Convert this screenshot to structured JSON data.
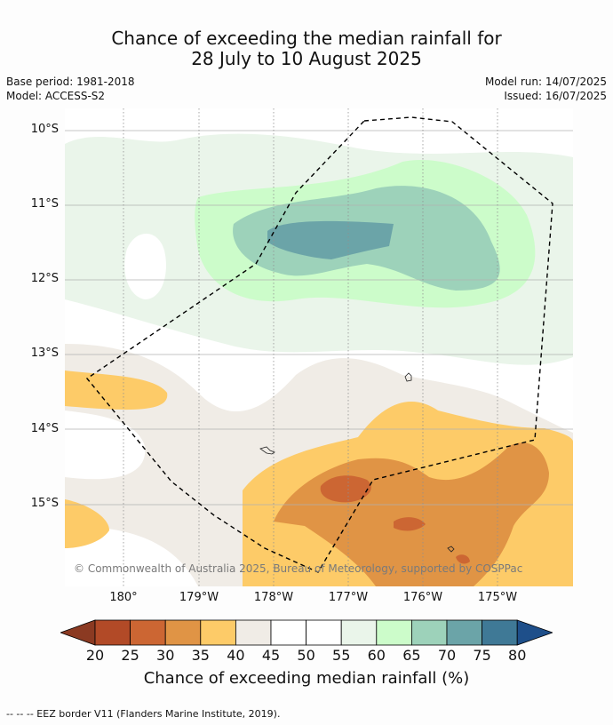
{
  "title_line1": "Chance of exceeding the median rainfall for",
  "title_line2": "28 July to 10 August 2025",
  "base_period": "Base period: 1981-2018",
  "model": "Model: ACCESS-S2",
  "model_run": "Model run: 14/07/2025",
  "issued": "Issued: 16/07/2025",
  "lat_labels": [
    "10°S",
    "11°S",
    "12°S",
    "13°S",
    "14°S",
    "15°S"
  ],
  "lon_labels": [
    "180°",
    "179°W",
    "178°W",
    "177°W",
    "176°W",
    "175°W"
  ],
  "copyright": "© Commonwealth of Australia 2025, Bureau of Meteorology, supported by COSPPac",
  "colorbar": {
    "ticks": [
      "20",
      "25",
      "30",
      "35",
      "40",
      "45",
      "50",
      "55",
      "60",
      "65",
      "70",
      "75",
      "80"
    ],
    "colors": [
      "#8b3a22",
      "#b24a27",
      "#cc6633",
      "#e09445",
      "#fdcb68",
      "#f0ece6",
      "#ffffff",
      "#ffffff",
      "#eaf5ea",
      "#ccfcca",
      "#9dd2ba",
      "#6ba4a8",
      "#3f7996",
      "#1e4f8a"
    ],
    "title": "Chance of exceeding median rainfall (%)"
  },
  "footer": "--  --  -- EEZ border V11 (Flanders Marine Institute, 2019)."
}
